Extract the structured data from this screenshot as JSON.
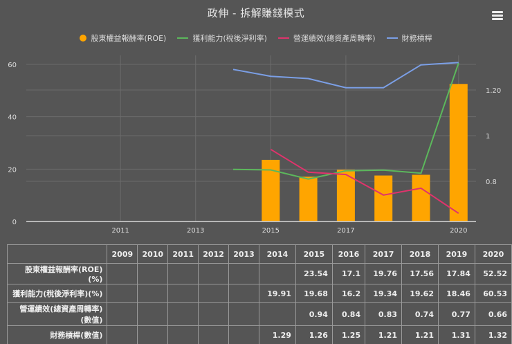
{
  "title": "政伸 - 拆解賺錢模式",
  "menu_icon": "hamburger-menu-icon",
  "legend": [
    {
      "label": "股東權益報酬率(ROE)",
      "color": "#FFA500",
      "shape": "dot"
    },
    {
      "label": "獲利能力(稅後淨利率)",
      "color": "#5cb85c",
      "shape": "line"
    },
    {
      "label": "營運績效(總資產周轉率)",
      "color": "#e0336c",
      "shape": "line"
    },
    {
      "label": "財務槓桿",
      "color": "#7b9fe6",
      "shape": "line"
    }
  ],
  "axes": {
    "left_ticks": [
      "0",
      "20",
      "40",
      "60"
    ],
    "right_ticks": [
      "0.8",
      "1",
      "1.20"
    ],
    "x_ticks": [
      "2011",
      "2013",
      "2015",
      "2017",
      "2020"
    ]
  },
  "table": {
    "header": [
      "",
      "2009",
      "2010",
      "2011",
      "2012",
      "2013",
      "2014",
      "2015",
      "2016",
      "2017",
      "2018",
      "2019",
      "2020"
    ],
    "rows": [
      {
        "label": "股東權益報酬率(ROE)(%)",
        "values": [
          "",
          "",
          "",
          "",
          "",
          "",
          "23.54",
          "17.1",
          "19.76",
          "17.56",
          "17.84",
          "52.52"
        ]
      },
      {
        "label": "獲利能力(稅後淨利率)(%)",
        "values": [
          "",
          "",
          "",
          "",
          "",
          "19.91",
          "19.68",
          "16.2",
          "19.34",
          "19.62",
          "18.46",
          "60.53"
        ]
      },
      {
        "label": "營運績效(總資產周轉率)(數值)",
        "values": [
          "",
          "",
          "",
          "",
          "",
          "",
          "0.94",
          "0.84",
          "0.83",
          "0.74",
          "0.77",
          "0.66"
        ]
      },
      {
        "label": "財務槓桿(數值)",
        "values": [
          "",
          "",
          "",
          "",
          "",
          "1.29",
          "1.26",
          "1.25",
          "1.21",
          "1.21",
          "1.31",
          "1.32"
        ]
      }
    ]
  },
  "chart_data": {
    "type": "bar",
    "title": "政伸 - 拆解賺錢模式",
    "categories": [
      "2009",
      "2010",
      "2011",
      "2012",
      "2013",
      "2014",
      "2015",
      "2016",
      "2017",
      "2018",
      "2019",
      "2020"
    ],
    "series": [
      {
        "name": "股東權益報酬率(ROE)",
        "type": "bar",
        "axis": "left",
        "color": "#FFA500",
        "values": [
          null,
          null,
          null,
          null,
          null,
          null,
          23.54,
          17.1,
          19.76,
          17.56,
          17.84,
          52.52
        ]
      },
      {
        "name": "獲利能力(稅後淨利率)",
        "type": "line",
        "axis": "left",
        "color": "#5cb85c",
        "values": [
          null,
          null,
          null,
          null,
          null,
          19.91,
          19.68,
          16.2,
          19.34,
          19.62,
          18.46,
          60.53
        ]
      },
      {
        "name": "營運績效(總資產周轉率)",
        "type": "line",
        "axis": "right",
        "color": "#e0336c",
        "values": [
          null,
          null,
          null,
          null,
          null,
          null,
          0.94,
          0.84,
          0.83,
          0.74,
          0.77,
          0.66
        ]
      },
      {
        "name": "財務槓桿",
        "type": "line",
        "axis": "right",
        "color": "#7b9fe6",
        "values": [
          null,
          null,
          null,
          null,
          null,
          1.29,
          1.26,
          1.25,
          1.21,
          1.21,
          1.31,
          1.32
        ]
      }
    ],
    "ylim_left": [
      0,
      60
    ],
    "ylim_right": [
      0.6,
      1.33
    ],
    "left_ticks": [
      0,
      20,
      40,
      60
    ],
    "right_ticks": [
      0.8,
      1,
      1.2
    ],
    "x_tick_labels": [
      "2011",
      "2013",
      "2015",
      "2017",
      "2020"
    ],
    "grid": true,
    "legend_position": "top"
  }
}
